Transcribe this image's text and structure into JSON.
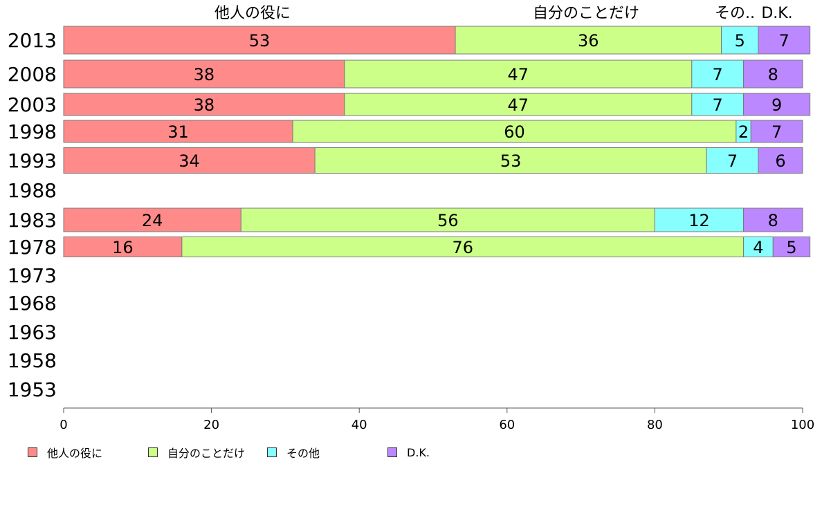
{
  "chart_data": {
    "type": "bar",
    "orientation": "horizontal",
    "stacked": true,
    "categories": [
      "2013",
      "2008",
      "2003",
      "1998",
      "1993",
      "1988",
      "1983",
      "1978",
      "1973",
      "1968",
      "1963",
      "1958",
      "1953"
    ],
    "series": [
      {
        "name": "他人の役に",
        "color": "#ff8a8a",
        "values": [
          53,
          38,
          38,
          31,
          34,
          null,
          24,
          16,
          null,
          null,
          null,
          null,
          null
        ]
      },
      {
        "name": "自分のことだけ",
        "color": "#ccff88",
        "values": [
          36,
          47,
          47,
          60,
          53,
          null,
          56,
          76,
          null,
          null,
          null,
          null,
          null
        ]
      },
      {
        "name": "その他",
        "color": "#88ffff",
        "values": [
          5,
          7,
          7,
          2,
          7,
          null,
          12,
          4,
          null,
          null,
          null,
          null,
          null
        ]
      },
      {
        "name": "D.K.",
        "color": "#bb88ff",
        "values": [
          7,
          8,
          9,
          7,
          6,
          null,
          8,
          5,
          null,
          null,
          null,
          null,
          null
        ]
      }
    ],
    "top_labels": [
      "他人の役に",
      "自分のことだけ",
      "その..",
      "D.K."
    ],
    "xlim": [
      0,
      100
    ],
    "xticks": [
      "0",
      "20",
      "40",
      "60",
      "80",
      "100"
    ],
    "grid": false,
    "legend_position": "bottom"
  }
}
